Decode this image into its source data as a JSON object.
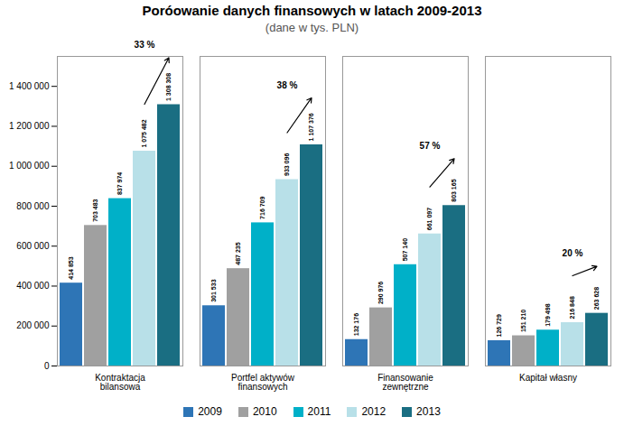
{
  "chart_data": {
    "type": "bar",
    "title": "Poróowanie danych finansowych w latach 2009-2013",
    "subtitle": "(dane w tys. PLN)",
    "categories": [
      "Kontraktacja\nbilansowa",
      "Portfel aktywów\nfinansowych",
      "Finansowanie\nzewnętrzne",
      "Kapitał własny"
    ],
    "series": [
      {
        "name": "2009",
        "color": "#2E75B6",
        "values": [
          414853,
          301533,
          132176,
          126729
        ],
        "value_labels": [
          "414 853",
          "301 533",
          "132 176",
          "126 729"
        ]
      },
      {
        "name": "2010",
        "color": "#A0A0A0",
        "values": [
          703483,
          487235,
          290976,
          151210
        ],
        "value_labels": [
          "703 483",
          "487 235",
          "290 976",
          "151 210"
        ]
      },
      {
        "name": "2011",
        "color": "#00B0C8",
        "values": [
          837974,
          716709,
          507140,
          179498
        ],
        "value_labels": [
          "837 974",
          "716 709",
          "507 140",
          "179 498"
        ]
      },
      {
        "name": "2012",
        "color": "#B8E0E8",
        "values": [
          1075482,
          933096,
          661097,
          216848
        ],
        "value_labels": [
          "1 075 482",
          "933 096",
          "661 097",
          "216 848"
        ]
      },
      {
        "name": "2013",
        "color": "#1A6E82",
        "values": [
          1308308,
          1107376,
          803165,
          263628
        ],
        "value_labels": [
          "1 308 308",
          "1 107 376",
          "803 165",
          "263 628"
        ]
      }
    ],
    "ylim": [
      0,
      1550000
    ],
    "yticks": [
      0,
      {
        "value": 200000,
        "label": "200 000"
      },
      {
        "value": 400000,
        "label": "400 000"
      },
      {
        "value": 600000,
        "label": "600 000"
      },
      {
        "value": 800000,
        "label": "800 000"
      },
      {
        "value": 1000000,
        "label": "1 000 000"
      },
      {
        "value": 1200000,
        "label": "1 200 000"
      },
      {
        "value": 1400000,
        "label": "1 400 000"
      }
    ],
    "grid": false,
    "legend": "bottom",
    "data_labels": true,
    "annotations": [
      {
        "text": "33 %",
        "category": "Kontraktacja\nbilansowa",
        "from": "2012",
        "to": "2013"
      },
      {
        "text": "38 %",
        "category": "Portfel aktywów\nfinansowych",
        "from": "2012",
        "to": "2013"
      },
      {
        "text": "57 %",
        "category": "Finansowanie\nzewnętrzne",
        "from": "2012",
        "to": "2013"
      },
      {
        "text": "20 %",
        "category": "Kapitał własny",
        "from": "2012",
        "to": "2013"
      }
    ]
  }
}
